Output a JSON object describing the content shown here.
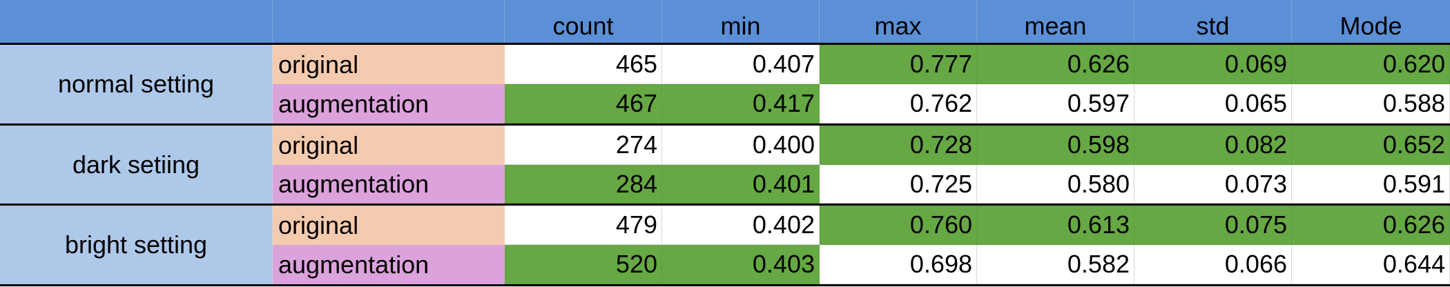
{
  "colors": {
    "header_bg": "#5b8fd6",
    "group_bg": "#aec8ea",
    "original_bg": "#f5cbaf",
    "augmentation_bg": "#dca2db",
    "highlight_green": "#66a844",
    "plain_bg": "#ffffff",
    "border": "#000000"
  },
  "table": {
    "headers": [
      "",
      "",
      "count",
      "min",
      "max",
      "mean",
      "std",
      "Mode"
    ],
    "groups": [
      {
        "name": "normal setting",
        "rows": [
          {
            "label": "original",
            "values": [
              "465",
              "0.407",
              "0.777",
              "0.626",
              "0.069",
              "0.620"
            ],
            "green": [
              false,
              false,
              true,
              true,
              true,
              true
            ]
          },
          {
            "label": "augmentation",
            "values": [
              "467",
              "0.417",
              "0.762",
              "0.597",
              "0.065",
              "0.588"
            ],
            "green": [
              true,
              true,
              false,
              false,
              false,
              false
            ]
          }
        ]
      },
      {
        "name": "dark setiing",
        "rows": [
          {
            "label": "original",
            "values": [
              "274",
              "0.400",
              "0.728",
              "0.598",
              "0.082",
              "0.652"
            ],
            "green": [
              false,
              false,
              true,
              true,
              true,
              true
            ]
          },
          {
            "label": "augmentation",
            "values": [
              "284",
              "0.401",
              "0.725",
              "0.580",
              "0.073",
              "0.591"
            ],
            "green": [
              true,
              true,
              false,
              false,
              false,
              false
            ]
          }
        ]
      },
      {
        "name": "bright setting",
        "rows": [
          {
            "label": "original",
            "values": [
              "479",
              "0.402",
              "0.760",
              "0.613",
              "0.075",
              "0.626"
            ],
            "green": [
              false,
              false,
              true,
              true,
              true,
              true
            ]
          },
          {
            "label": "augmentation",
            "values": [
              "520",
              "0.403",
              "0.698",
              "0.582",
              "0.066",
              "0.644"
            ],
            "green": [
              true,
              true,
              false,
              false,
              false,
              false
            ]
          }
        ]
      }
    ]
  }
}
